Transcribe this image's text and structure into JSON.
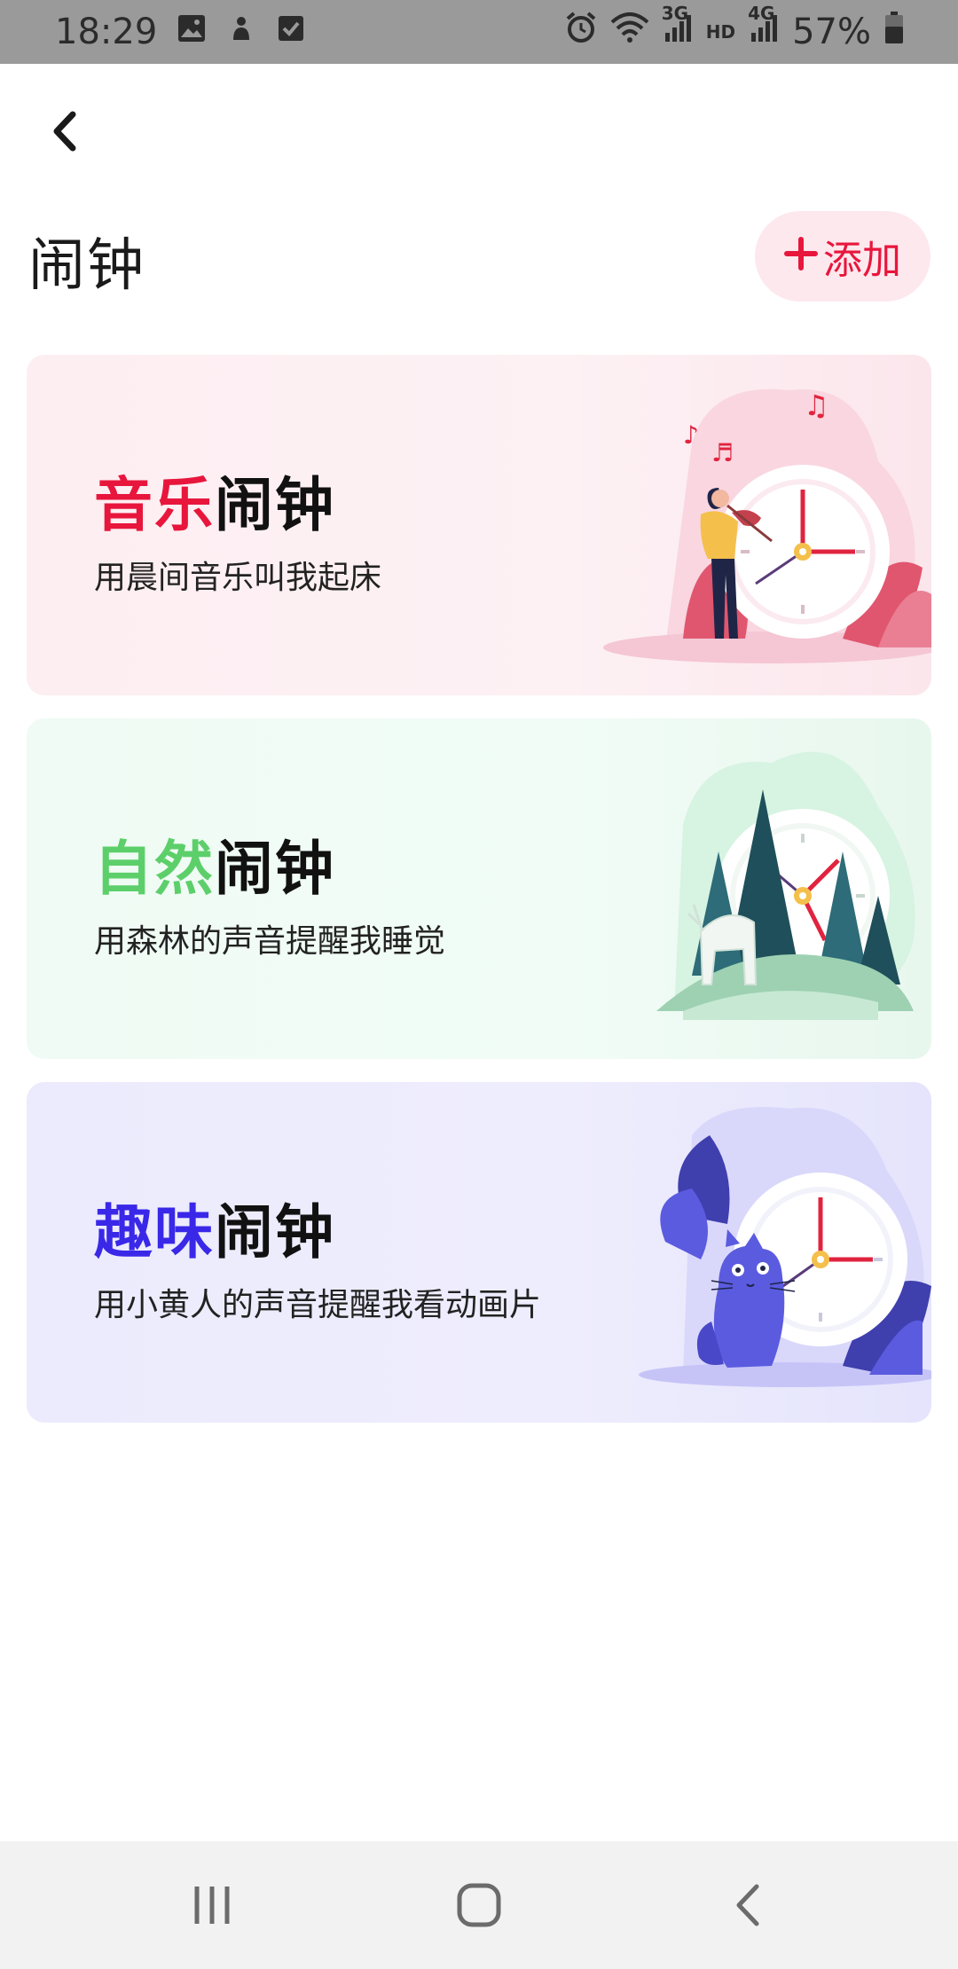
{
  "status_bar": {
    "time": "18:29",
    "left_icons": [
      "gallery-icon",
      "app-notification-icon",
      "checkbox-icon"
    ],
    "right_icons": [
      "alarm-icon",
      "wifi-icon",
      "signal-3g-icon",
      "hd-icon",
      "signal-4g-icon",
      "battery-icon"
    ],
    "net_3g": "3G",
    "hd": "HD",
    "net_4g": "4G",
    "battery": "57%"
  },
  "header": {
    "back_icon": "chevron-left-icon",
    "title": "闹钟",
    "add_label": "添加",
    "add_icon": "plus-icon",
    "accent_color": "#e8163c"
  },
  "cards": [
    {
      "title_accent": "音乐",
      "title_rest": "闹钟",
      "subtitle": "用晨间音乐叫我起床",
      "accent_color": "#e8163c",
      "illustration": "violinist-clock-illustration"
    },
    {
      "title_accent": "自然",
      "title_rest": "闹钟",
      "subtitle": "用森林的声音提醒我睡觉",
      "accent_color": "#5dcf6a",
      "illustration": "forest-deer-clock-illustration"
    },
    {
      "title_accent": "趣味",
      "title_rest": "闹钟",
      "subtitle": "用小黄人的声音提醒我看动画片",
      "accent_color": "#3a28e8",
      "illustration": "cat-clock-illustration"
    }
  ],
  "nav_bar": {
    "icons": [
      "recent-apps-icon",
      "home-icon",
      "back-icon"
    ]
  }
}
